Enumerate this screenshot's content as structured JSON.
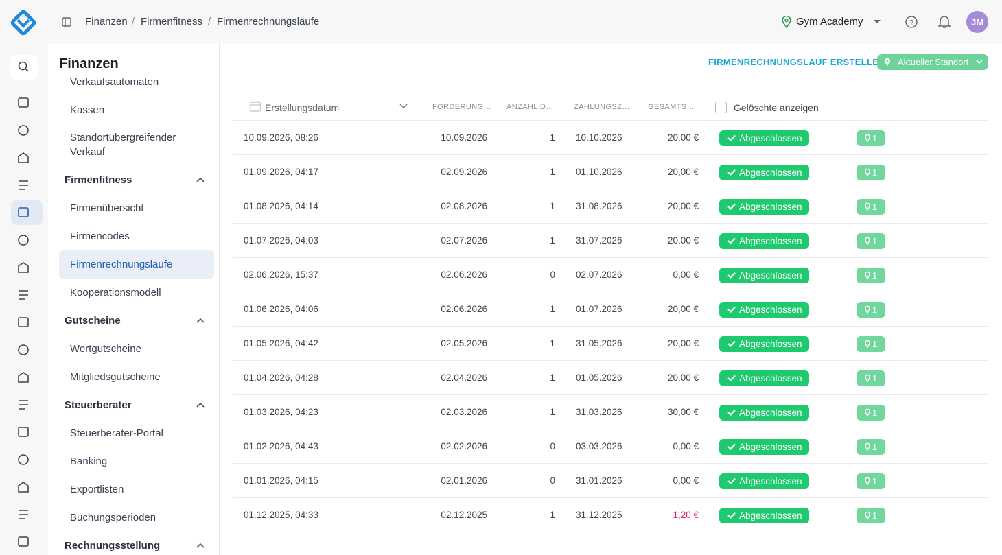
{
  "header": {
    "breadcrumb": [
      "Finanzen",
      "Firmenfitness",
      "Firmenrechnungsläufe"
    ],
    "location": "Gym Academy",
    "avatar": "JM"
  },
  "sidebar": {
    "title": "Finanzen",
    "items": [
      {
        "label": "Verkaufsautomaten",
        "kind": "item"
      },
      {
        "label": "Kassen",
        "kind": "item"
      },
      {
        "label": "Standortübergreifender Verkauf",
        "kind": "item"
      },
      {
        "label": "Firmenfitness",
        "kind": "group"
      },
      {
        "label": "Firmenübersicht",
        "kind": "item"
      },
      {
        "label": "Firmencodes",
        "kind": "item"
      },
      {
        "label": "Firmenrechnungsläufe",
        "kind": "item",
        "active": true
      },
      {
        "label": "Kooperationsmodell",
        "kind": "item"
      },
      {
        "label": "Gutscheine",
        "kind": "group"
      },
      {
        "label": "Wertgutscheine",
        "kind": "item"
      },
      {
        "label": "Mitgliedsgutscheine",
        "kind": "item"
      },
      {
        "label": "Steuerberater",
        "kind": "group"
      },
      {
        "label": "Steuerberater-Portal",
        "kind": "item"
      },
      {
        "label": "Banking",
        "kind": "item"
      },
      {
        "label": "Exportlisten",
        "kind": "item"
      },
      {
        "label": "Buchungsperioden",
        "kind": "item"
      },
      {
        "label": "Rechnungsstellung",
        "kind": "group"
      }
    ]
  },
  "actions": {
    "create": "FIRMENRECHNUNGSLAUF ERSTELLEN",
    "location_filter": "Aktueller Standort"
  },
  "table": {
    "columns": [
      "Erstellungsdatum",
      "FORDERUNG…",
      "ANZAHL D…",
      "ZAHLUNGSZ…",
      "GESAMTS…"
    ],
    "show_deleted": "Gelöschte anzeigen",
    "rows": [
      {
        "created": "10.09.2026, 08:26",
        "claim": "10.09.2026",
        "count": "1",
        "due": "10.10.2026",
        "total": "20,00 €",
        "status": "Abgeschlossen",
        "locations": "1"
      },
      {
        "created": "01.09.2026, 04:17",
        "claim": "02.09.2026",
        "count": "1",
        "due": "01.10.2026",
        "total": "20,00 €",
        "status": "Abgeschlossen",
        "locations": "1"
      },
      {
        "created": "01.08.2026, 04:14",
        "claim": "02.08.2026",
        "count": "1",
        "due": "31.08.2026",
        "total": "20,00 €",
        "status": "Abgeschlossen",
        "locations": "1"
      },
      {
        "created": "01.07.2026, 04:03",
        "claim": "02.07.2026",
        "count": "1",
        "due": "31.07.2026",
        "total": "20,00 €",
        "status": "Abgeschlossen",
        "locations": "1"
      },
      {
        "created": "02.06.2026, 15:37",
        "claim": "02.06.2026",
        "count": "0",
        "due": "02.07.2026",
        "total": "0,00 €",
        "status": "Abgeschlossen",
        "locations": "1"
      },
      {
        "created": "01.06.2026, 04:06",
        "claim": "02.06.2026",
        "count": "1",
        "due": "01.07.2026",
        "total": "20,00 €",
        "status": "Abgeschlossen",
        "locations": "1"
      },
      {
        "created": "01.05.2026, 04:42",
        "claim": "02.05.2026",
        "count": "1",
        "due": "31.05.2026",
        "total": "20,00 €",
        "status": "Abgeschlossen",
        "locations": "1"
      },
      {
        "created": "01.04.2026, 04:28",
        "claim": "02.04.2026",
        "count": "1",
        "due": "01.05.2026",
        "total": "20,00 €",
        "status": "Abgeschlossen",
        "locations": "1"
      },
      {
        "created": "01.03.2026, 04:23",
        "claim": "02.03.2026",
        "count": "1",
        "due": "31.03.2026",
        "total": "30,00 €",
        "status": "Abgeschlossen",
        "locations": "1"
      },
      {
        "created": "01.02.2026, 04:43",
        "claim": "02.02.2026",
        "count": "0",
        "due": "03.03.2026",
        "total": "0,00 €",
        "status": "Abgeschlossen",
        "locations": "1"
      },
      {
        "created": "01.01.2026, 04:15",
        "claim": "02.01.2026",
        "count": "0",
        "due": "31.01.2026",
        "total": "0,00 €",
        "status": "Abgeschlossen",
        "locations": "1"
      },
      {
        "created": "01.12.2025, 04:33",
        "claim": "02.12.2025",
        "count": "1",
        "due": "31.12.2025",
        "total": "1,20 €",
        "total_color": "#e0245e",
        "status": "Abgeschlossen",
        "locations": "1"
      }
    ]
  }
}
